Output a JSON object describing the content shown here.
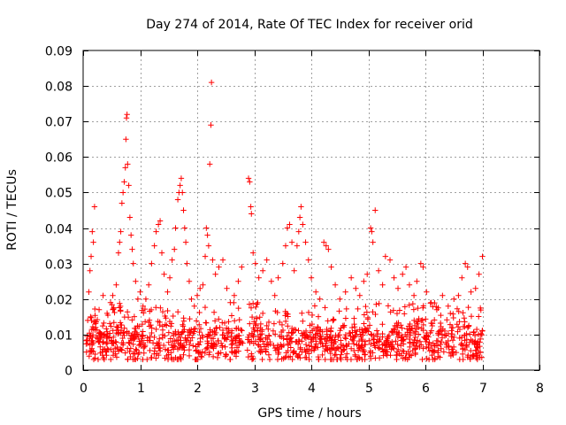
{
  "chart_data": {
    "type": "scatter",
    "title": "Day 274 of 2014, Rate Of TEC Index for receiver orid",
    "xlabel": "GPS time / hours",
    "ylabel": "ROTI / TECUs",
    "xlim": [
      0,
      8
    ],
    "ylim": [
      0,
      0.09
    ],
    "x_ticks": [
      0,
      1,
      2,
      3,
      4,
      5,
      6,
      7,
      8
    ],
    "x_tick_labels": [
      "0",
      "1",
      "2",
      "3",
      "4",
      "5",
      "6",
      "7",
      "8"
    ],
    "y_ticks": [
      0,
      0.01,
      0.02,
      0.03,
      0.04,
      0.05,
      0.06,
      0.07,
      0.08,
      0.09
    ],
    "y_tick_labels": [
      "0",
      "0.01",
      "0.02",
      "0.03",
      "0.04",
      "0.05",
      "0.06",
      "0.07",
      "0.08",
      "0.09"
    ],
    "grid": true,
    "marker": "+",
    "color": "#ff0000",
    "series": [
      {
        "name": "ROTI",
        "points": [
          [
            0.08,
            0.014
          ],
          [
            0.1,
            0.022
          ],
          [
            0.12,
            0.028
          ],
          [
            0.14,
            0.032
          ],
          [
            0.16,
            0.039
          ],
          [
            0.18,
            0.036
          ],
          [
            0.2,
            0.046
          ],
          [
            0.22,
            0.012
          ],
          [
            0.28,
            0.017
          ],
          [
            0.35,
            0.021
          ],
          [
            0.42,
            0.016
          ],
          [
            0.48,
            0.019
          ],
          [
            0.52,
            0.021
          ],
          [
            0.58,
            0.024
          ],
          [
            0.62,
            0.033
          ],
          [
            0.64,
            0.036
          ],
          [
            0.66,
            0.039
          ],
          [
            0.68,
            0.047
          ],
          [
            0.7,
            0.05
          ],
          [
            0.72,
            0.053
          ],
          [
            0.74,
            0.057
          ],
          [
            0.75,
            0.065
          ],
          [
            0.76,
            0.071
          ],
          [
            0.77,
            0.072
          ],
          [
            0.78,
            0.058
          ],
          [
            0.8,
            0.052
          ],
          [
            0.82,
            0.043
          ],
          [
            0.84,
            0.038
          ],
          [
            0.86,
            0.034
          ],
          [
            0.88,
            0.03
          ],
          [
            0.92,
            0.025
          ],
          [
            0.96,
            0.02
          ],
          [
            1.0,
            0.022
          ],
          [
            1.05,
            0.018
          ],
          [
            1.1,
            0.02
          ],
          [
            1.15,
            0.024
          ],
          [
            1.2,
            0.03
          ],
          [
            1.25,
            0.035
          ],
          [
            1.28,
            0.039
          ],
          [
            1.32,
            0.041
          ],
          [
            1.35,
            0.042
          ],
          [
            1.38,
            0.033
          ],
          [
            1.42,
            0.027
          ],
          [
            1.48,
            0.022
          ],
          [
            1.52,
            0.026
          ],
          [
            1.56,
            0.031
          ],
          [
            1.6,
            0.034
          ],
          [
            1.62,
            0.04
          ],
          [
            1.66,
            0.048
          ],
          [
            1.68,
            0.05
          ],
          [
            1.7,
            0.052
          ],
          [
            1.72,
            0.054
          ],
          [
            1.74,
            0.05
          ],
          [
            1.76,
            0.045
          ],
          [
            1.78,
            0.04
          ],
          [
            1.8,
            0.036
          ],
          [
            1.82,
            0.03
          ],
          [
            1.86,
            0.025
          ],
          [
            1.9,
            0.02
          ],
          [
            1.95,
            0.018
          ],
          [
            2.0,
            0.021
          ],
          [
            2.05,
            0.023
          ],
          [
            2.1,
            0.024
          ],
          [
            2.14,
            0.032
          ],
          [
            2.16,
            0.04
          ],
          [
            2.18,
            0.038
          ],
          [
            2.2,
            0.035
          ],
          [
            2.22,
            0.058
          ],
          [
            2.24,
            0.069
          ],
          [
            2.25,
            0.081
          ],
          [
            2.27,
            0.031
          ],
          [
            2.32,
            0.027
          ],
          [
            2.38,
            0.029
          ],
          [
            2.45,
            0.031
          ],
          [
            2.52,
            0.023
          ],
          [
            2.58,
            0.019
          ],
          [
            2.65,
            0.021
          ],
          [
            2.72,
            0.025
          ],
          [
            2.78,
            0.029
          ],
          [
            2.9,
            0.054
          ],
          [
            2.92,
            0.053
          ],
          [
            2.94,
            0.046
          ],
          [
            2.95,
            0.044
          ],
          [
            2.98,
            0.033
          ],
          [
            3.02,
            0.03
          ],
          [
            3.08,
            0.026
          ],
          [
            3.15,
            0.028
          ],
          [
            3.22,
            0.031
          ],
          [
            3.3,
            0.025
          ],
          [
            3.36,
            0.021
          ],
          [
            3.42,
            0.026
          ],
          [
            3.5,
            0.03
          ],
          [
            3.55,
            0.035
          ],
          [
            3.58,
            0.04
          ],
          [
            3.62,
            0.041
          ],
          [
            3.66,
            0.036
          ],
          [
            3.7,
            0.028
          ],
          [
            3.75,
            0.035
          ],
          [
            3.78,
            0.039
          ],
          [
            3.8,
            0.043
          ],
          [
            3.82,
            0.046
          ],
          [
            3.85,
            0.041
          ],
          [
            3.9,
            0.036
          ],
          [
            3.95,
            0.031
          ],
          [
            4.0,
            0.026
          ],
          [
            4.08,
            0.022
          ],
          [
            4.15,
            0.02
          ],
          [
            4.22,
            0.036
          ],
          [
            4.26,
            0.035
          ],
          [
            4.3,
            0.034
          ],
          [
            4.35,
            0.029
          ],
          [
            4.42,
            0.024
          ],
          [
            4.5,
            0.02
          ],
          [
            4.6,
            0.022
          ],
          [
            4.7,
            0.026
          ],
          [
            4.78,
            0.023
          ],
          [
            4.85,
            0.021
          ],
          [
            4.92,
            0.025
          ],
          [
            4.98,
            0.027
          ],
          [
            5.04,
            0.04
          ],
          [
            5.06,
            0.039
          ],
          [
            5.08,
            0.036
          ],
          [
            5.12,
            0.045
          ],
          [
            5.18,
            0.028
          ],
          [
            5.25,
            0.024
          ],
          [
            5.3,
            0.032
          ],
          [
            5.38,
            0.031
          ],
          [
            5.45,
            0.026
          ],
          [
            5.52,
            0.023
          ],
          [
            5.6,
            0.027
          ],
          [
            5.66,
            0.029
          ],
          [
            5.72,
            0.024
          ],
          [
            5.8,
            0.021
          ],
          [
            5.85,
            0.025
          ],
          [
            5.92,
            0.03
          ],
          [
            5.96,
            0.029
          ],
          [
            6.02,
            0.022
          ],
          [
            6.1,
            0.019
          ],
          [
            6.2,
            0.017
          ],
          [
            6.3,
            0.021
          ],
          [
            6.4,
            0.018
          ],
          [
            6.5,
            0.02
          ],
          [
            6.58,
            0.021
          ],
          [
            6.64,
            0.026
          ],
          [
            6.7,
            0.03
          ],
          [
            6.74,
            0.029
          ],
          [
            6.8,
            0.022
          ],
          [
            6.88,
            0.023
          ],
          [
            6.94,
            0.027
          ],
          [
            7.0,
            0.032
          ]
        ]
      }
    ],
    "dense_band": {
      "x_ranges": [
        [
          0.05,
          2.8
        ],
        [
          2.88,
          7.0
        ]
      ],
      "y_min": 0.003,
      "y_max": 0.019,
      "typical": 0.008
    }
  }
}
